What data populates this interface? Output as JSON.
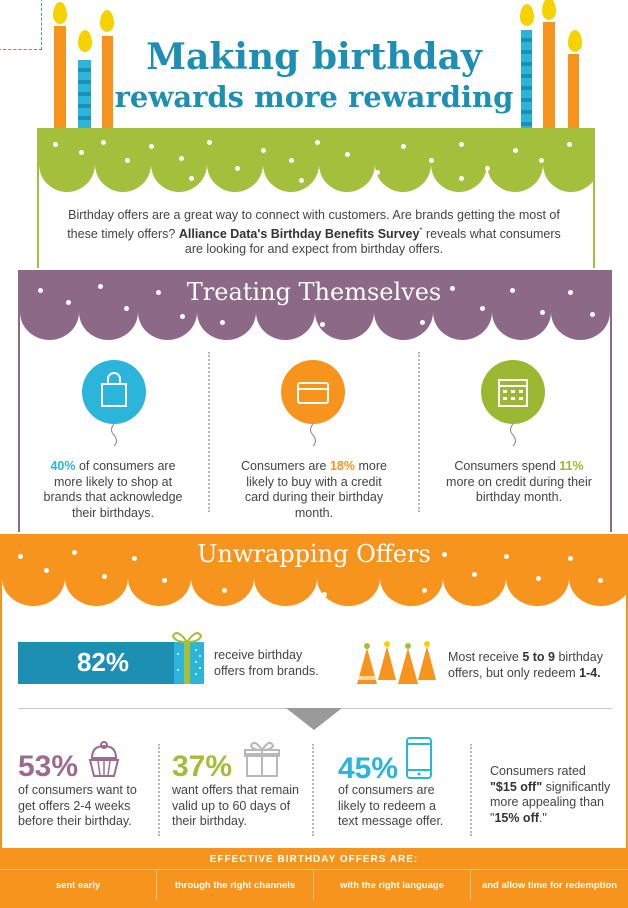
{
  "header": {
    "title_line1": "Making birthday",
    "title_line2": "rewards more rewarding"
  },
  "intro": {
    "text_before": "Birthday offers are a great way to connect with customers. Are brands getting the most of these timely offers? ",
    "survey_name": "Alliance Data's Birthday Benefits Survey",
    "asterisk": "*",
    "text_after": " reveals what consumers are looking for and expect from birthday offers."
  },
  "treating": {
    "title": "Treating Themselves",
    "stats": [
      {
        "icon": "shopping-bag-icon",
        "value": "40%",
        "text": " of consumers are more likely to shop at brands that acknowledge their birthdays.",
        "prefix": "",
        "color": "#2bb5da"
      },
      {
        "icon": "credit-card-icon",
        "prefix": "Consumers are ",
        "value": "18%",
        "text": " more likely to buy with a credit card during their birthday month.",
        "color": "#f7941d"
      },
      {
        "icon": "calendar-icon",
        "prefix": "Consumers spend ",
        "value": "11%",
        "text": " more on credit during their birthday month.",
        "color": "#9cb832"
      }
    ]
  },
  "unwrapping": {
    "title": "Unwrapping Offers",
    "receive_pct": "82%",
    "receive_text": "receive birthday offers from brands.",
    "redeem_prefix": "Most receive ",
    "redeem_range": "5 to 9",
    "redeem_mid": " birthday offers, but only redeem ",
    "redeem_count": "1-4.",
    "stats": [
      {
        "value": "53%",
        "color": "#9b6b92",
        "icon": "cupcake-icon",
        "text": "of consumers want to get offers 2-4 weeks before their birthday."
      },
      {
        "value": "37%",
        "color": "#a4bd35",
        "icon": "gift-icon",
        "text": "want offers that remain valid up to 60 days of their birthday."
      },
      {
        "value": "45%",
        "color": "#2bb5da",
        "icon": "phone-icon",
        "text": "of consumers are likely to redeem a text message offer."
      }
    ],
    "rated_prefix": "Consumers rated",
    "rated_a": "\"$15 off\"",
    "rated_mid": " significantly more appealing than \"",
    "rated_b": "15% off",
    "rated_end": ".\""
  },
  "footer": {
    "heading": "EFFECTIVE BIRTHDAY OFFERS ARE:",
    "items": [
      "sent early",
      "through the right channels",
      "with the right language",
      "and allow time for redemption"
    ]
  },
  "colors": {
    "green": "#a4bf3b",
    "purple": "#8d6988",
    "orange": "#f7941d",
    "blue": "#1c8fb3"
  }
}
